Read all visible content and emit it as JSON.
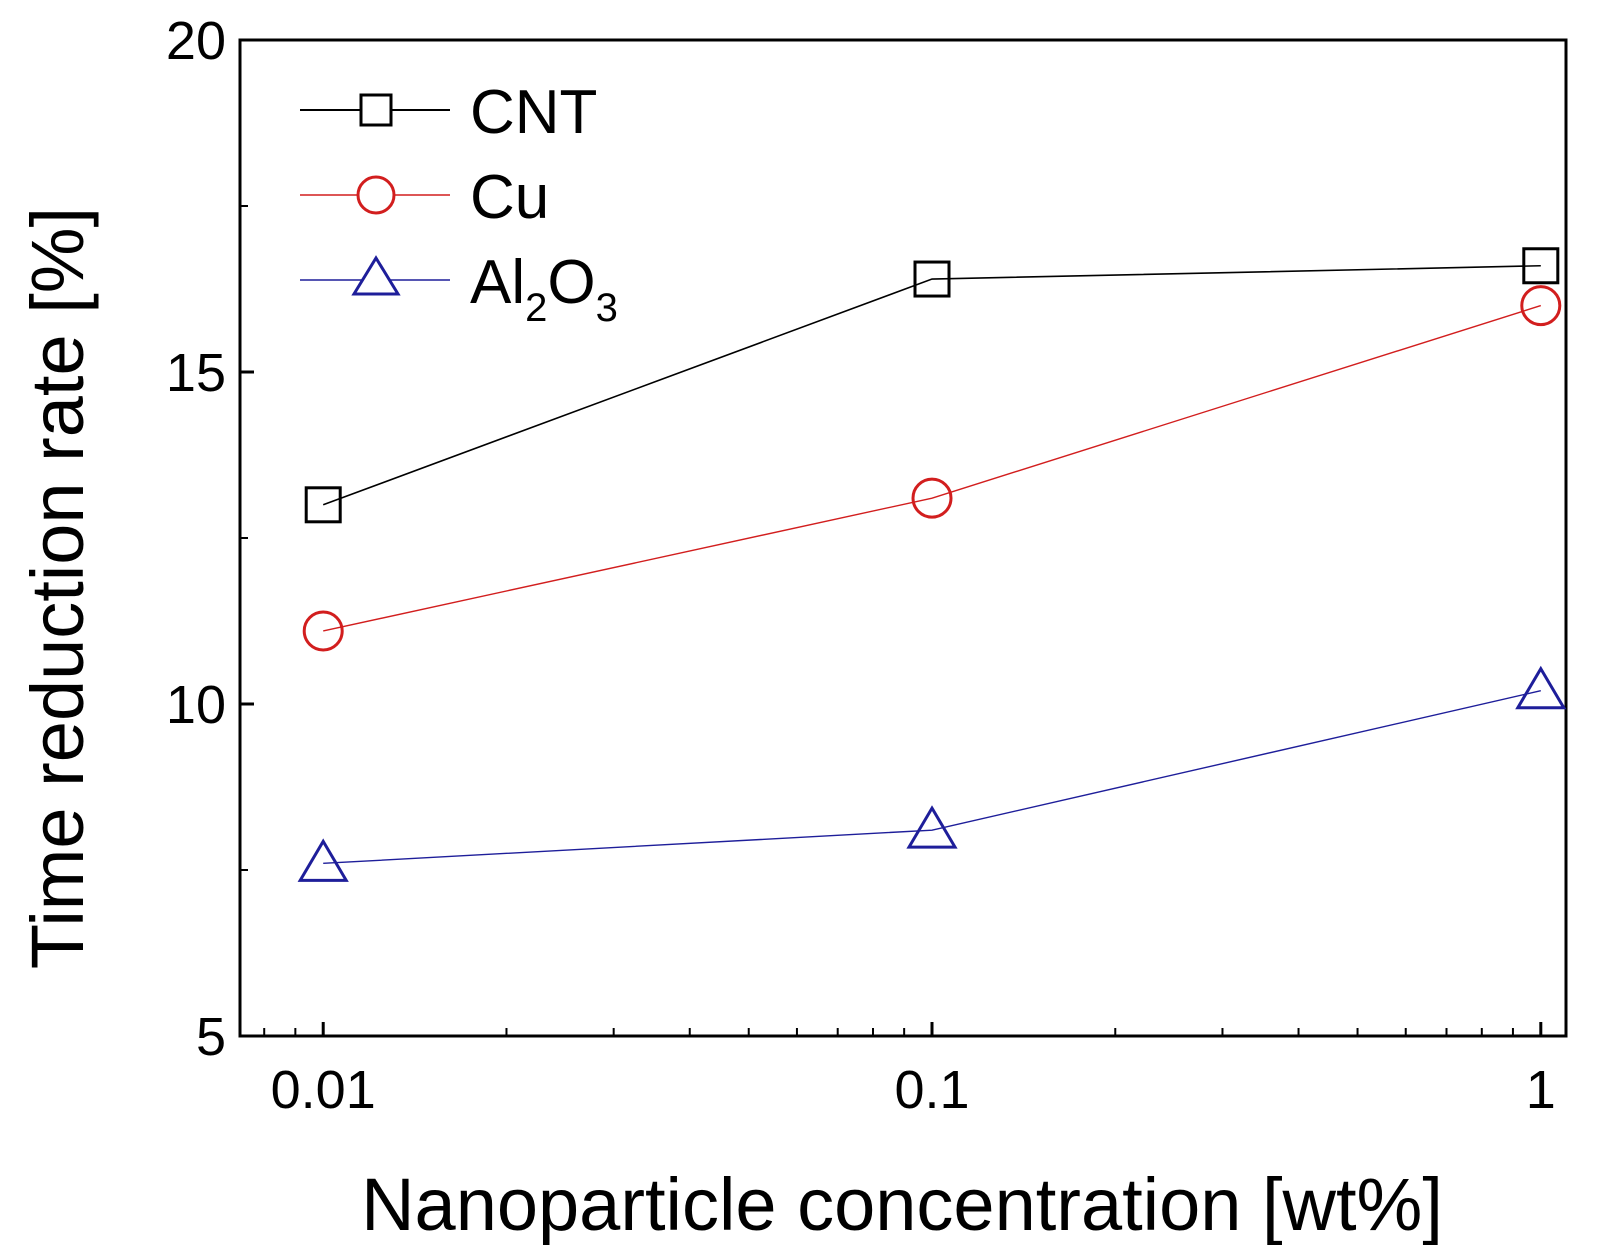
{
  "chart_data": {
    "type": "line",
    "x_scale": "log",
    "x": [
      0.01,
      0.1,
      1
    ],
    "x_tick_labels": [
      "0.01",
      "0.1",
      "1"
    ],
    "xlim": [
      0.0073,
      1.1
    ],
    "ylim": [
      5,
      20
    ],
    "y_ticks": [
      5,
      10,
      15,
      20
    ],
    "y_tick_labels": [
      "5",
      "10",
      "15",
      "20"
    ],
    "xlabel": "Nanoparticle concentration [wt%]",
    "ylabel": "Time reduction rate [%]",
    "title": "",
    "legend_position": "top-left",
    "series": [
      {
        "name": "CNT",
        "marker": "square",
        "color": "#000000",
        "values": [
          13.0,
          16.4,
          16.6
        ]
      },
      {
        "name": "Cu",
        "marker": "circle",
        "color": "#d21e1e",
        "values": [
          11.1,
          13.1,
          16.0
        ]
      },
      {
        "name": "Al2O3",
        "label_main": "Al",
        "sub1": "2",
        "label_mid": "O",
        "sub2": "3",
        "marker": "triangle",
        "color": "#1e1e9a",
        "values": [
          7.6,
          8.1,
          10.2
        ]
      }
    ]
  }
}
